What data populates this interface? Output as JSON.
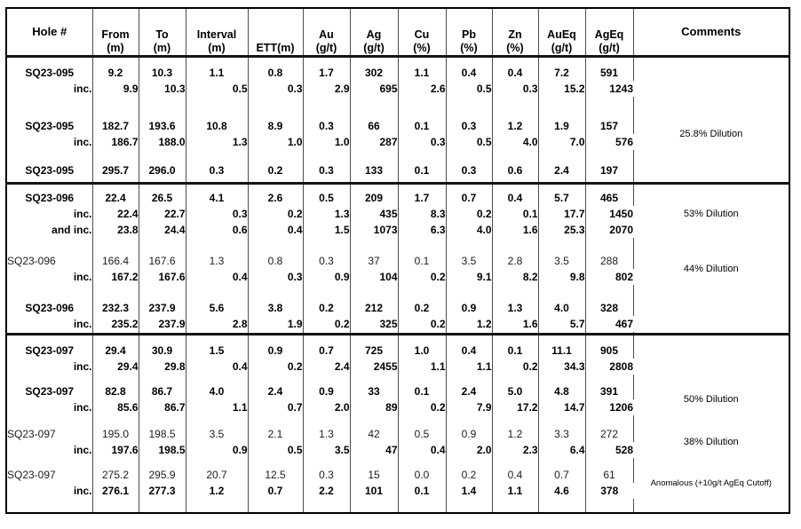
{
  "colors": {
    "background": "#ffffff",
    "text": "#000000",
    "border": "#000000",
    "grid_line": "#4d4d4d"
  },
  "table": {
    "headers": [
      {
        "id": "hole",
        "lines": [
          "Hole #"
        ],
        "vcenter": true
      },
      {
        "id": "from",
        "lines": [
          "From",
          "(m)"
        ],
        "vcenter": false
      },
      {
        "id": "to",
        "lines": [
          "To",
          "(m)"
        ],
        "vcenter": false
      },
      {
        "id": "interval",
        "lines": [
          "Interval",
          "(m)"
        ],
        "vcenter": false
      },
      {
        "id": "ett",
        "lines": [
          "ETT(m)"
        ],
        "vcenter": false
      },
      {
        "id": "au",
        "lines": [
          "Au",
          "(g/t)"
        ],
        "vcenter": false
      },
      {
        "id": "ag",
        "lines": [
          "Ag",
          "(g/t)"
        ],
        "vcenter": false
      },
      {
        "id": "cu",
        "lines": [
          "Cu",
          "(%)"
        ],
        "vcenter": false
      },
      {
        "id": "pb",
        "lines": [
          "Pb",
          "(%)"
        ],
        "vcenter": false
      },
      {
        "id": "zn",
        "lines": [
          "Zn",
          "(%)"
        ],
        "vcenter": false
      },
      {
        "id": "aueq",
        "lines": [
          "AuEq",
          "(g/t)"
        ],
        "vcenter": false
      },
      {
        "id": "ageq",
        "lines": [
          "AgEq",
          "(g/t)"
        ],
        "vcenter": false
      },
      {
        "id": "comments",
        "lines": [
          "Comments"
        ],
        "vcenter": true
      }
    ],
    "sections": [
      {
        "groups": [
          {
            "comment": "",
            "rows": [
              {
                "hole": "SQ23-095",
                "hole_align": "center",
                "bold": true,
                "val_align": "center",
                "values": [
                  "9.2",
                  "10.3",
                  "1.1",
                  "0.8",
                  "1.7",
                  "302",
                  "1.1",
                  "0.4",
                  "0.4",
                  "7.2",
                  "591"
                ]
              },
              {
                "hole": "inc.",
                "hole_align": "right",
                "bold": true,
                "val_align": "right",
                "values": [
                  "9.9",
                  "10.3",
                  "0.5",
                  "0.3",
                  "2.9",
                  "695",
                  "2.6",
                  "0.5",
                  "0.3",
                  "15.2",
                  "1243"
                ]
              }
            ]
          },
          {
            "comment": "25.8% Dilution",
            "rows": [
              {
                "hole": "SQ23-095",
                "hole_align": "center",
                "bold": true,
                "val_align": "center",
                "values": [
                  "182.7",
                  "193.6",
                  "10.8",
                  "8.9",
                  "0.3",
                  "66",
                  "0.1",
                  "0.3",
                  "1.2",
                  "1.9",
                  "157"
                ]
              },
              {
                "hole": "inc.",
                "hole_align": "right",
                "bold": true,
                "val_align": "right",
                "values": [
                  "186.7",
                  "188.0",
                  "1.3",
                  "1.0",
                  "1.0",
                  "287",
                  "0.3",
                  "0.5",
                  "4.0",
                  "7.0",
                  "576"
                ]
              }
            ]
          },
          {
            "comment": "",
            "rows": [
              {
                "hole": "SQ23-095",
                "hole_align": "center",
                "bold": true,
                "val_align": "center",
                "values": [
                  "295.7",
                  "296.0",
                  "0.3",
                  "0.2",
                  "0.3",
                  "133",
                  "0.1",
                  "0.3",
                  "0.6",
                  "2.4",
                  "197"
                ]
              }
            ]
          }
        ]
      },
      {
        "groups": [
          {
            "comment": "53% Dilution",
            "rows": [
              {
                "hole": "SQ23-096",
                "hole_align": "center",
                "bold": true,
                "val_align": "center",
                "values": [
                  "22.4",
                  "26.5",
                  "4.1",
                  "2.6",
                  "0.5",
                  "209",
                  "1.7",
                  "0.7",
                  "0.4",
                  "5.7",
                  "465"
                ]
              },
              {
                "hole": "inc.",
                "hole_align": "right",
                "bold": true,
                "val_align": "right",
                "values": [
                  "22.4",
                  "22.7",
                  "0.3",
                  "0.2",
                  "1.3",
                  "435",
                  "8.3",
                  "0.2",
                  "0.1",
                  "17.7",
                  "1450"
                ]
              },
              {
                "hole": "and inc.",
                "hole_align": "right",
                "bold": true,
                "val_align": "right",
                "values": [
                  "23.8",
                  "24.4",
                  "0.6",
                  "0.4",
                  "1.5",
                  "1073",
                  "6.3",
                  "4.0",
                  "1.6",
                  "25.3",
                  "2070"
                ]
              }
            ]
          },
          {
            "comment": "44% Dilution",
            "rows": [
              {
                "hole": "SQ23-096",
                "hole_align": "left",
                "bold": false,
                "val_align": "center",
                "values": [
                  "166.4",
                  "167.6",
                  "1.3",
                  "0.8",
                  "0.3",
                  "37",
                  "0.1",
                  "3.5",
                  "2.8",
                  "3.5",
                  "288"
                ]
              },
              {
                "hole": "inc.",
                "hole_align": "right",
                "bold": true,
                "val_align": "right",
                "values": [
                  "167.2",
                  "167.6",
                  "0.4",
                  "0.3",
                  "0.9",
                  "104",
                  "0.2",
                  "9.1",
                  "8.2",
                  "9.8",
                  "802"
                ]
              }
            ]
          },
          {
            "comment": "",
            "rows": [
              {
                "hole": "SQ23-096",
                "hole_align": "center",
                "bold": true,
                "val_align": "center",
                "values": [
                  "232.3",
                  "237.9",
                  "5.6",
                  "3.8",
                  "0.2",
                  "212",
                  "0.2",
                  "0.9",
                  "1.3",
                  "4.0",
                  "328"
                ]
              },
              {
                "hole": "inc.",
                "hole_align": "right",
                "bold": true,
                "val_align": "right",
                "values": [
                  "235.2",
                  "237.9",
                  "2.8",
                  "1.9",
                  "0.2",
                  "325",
                  "0.2",
                  "1.2",
                  "1.6",
                  "5.7",
                  "467"
                ]
              }
            ]
          }
        ]
      },
      {
        "groups": [
          {
            "comment": "",
            "rows": [
              {
                "hole": "SQ23-097",
                "hole_align": "center",
                "bold": true,
                "val_align": "center",
                "values": [
                  "29.4",
                  "30.9",
                  "1.5",
                  "0.9",
                  "0.7",
                  "725",
                  "1.0",
                  "0.4",
                  "0.1",
                  "11.1",
                  "905"
                ]
              },
              {
                "hole": "inc.",
                "hole_align": "right",
                "bold": true,
                "val_align": "right",
                "values": [
                  "29.4",
                  "29.8",
                  "0.4",
                  "0.2",
                  "2.4",
                  "2455",
                  "1.1",
                  "1.1",
                  "0.2",
                  "34.3",
                  "2808"
                ]
              }
            ]
          },
          {
            "comment": "50% Dilution",
            "rows": [
              {
                "hole": "SQ23-097",
                "hole_align": "center",
                "bold": true,
                "val_align": "center",
                "values": [
                  "82.8",
                  "86.7",
                  "4.0",
                  "2.4",
                  "0.9",
                  "33",
                  "0.1",
                  "2.4",
                  "5.0",
                  "4.8",
                  "391"
                ]
              },
              {
                "hole": "inc.",
                "hole_align": "right",
                "bold": true,
                "val_align": "right",
                "values": [
                  "85.6",
                  "86.7",
                  "1.1",
                  "0.7",
                  "2.0",
                  "89",
                  "0.2",
                  "7.9",
                  "17.2",
                  "14.7",
                  "1206"
                ]
              }
            ]
          },
          {
            "comment": "38% Dilution",
            "rows": [
              {
                "hole": "SQ23-097",
                "hole_align": "left",
                "bold": false,
                "val_align": "center",
                "values": [
                  "195.0",
                  "198.5",
                  "3.5",
                  "2.1",
                  "1.3",
                  "42",
                  "0.5",
                  "0.9",
                  "1.2",
                  "3.3",
                  "272"
                ]
              },
              {
                "hole": "inc.",
                "hole_align": "right",
                "bold": true,
                "val_align": "right",
                "values": [
                  "197.6",
                  "198.5",
                  "0.9",
                  "0.5",
                  "3.5",
                  "47",
                  "0.4",
                  "2.0",
                  "2.3",
                  "6.4",
                  "528"
                ]
              }
            ]
          },
          {
            "comment": "Anomalous (+10g/t AgEq Cutoff)",
            "comment_small": true,
            "rows": [
              {
                "hole": "SQ23-097",
                "hole_align": "left",
                "bold": false,
                "val_align": "center",
                "values": [
                  "275.2",
                  "295.9",
                  "20.7",
                  "12.5",
                  "0.3",
                  "15",
                  "0.0",
                  "0.2",
                  "0.4",
                  "0.7",
                  "61"
                ]
              },
              {
                "hole": "inc.",
                "hole_align": "right",
                "bold": true,
                "val_align": "center",
                "values": [
                  "276.1",
                  "277.3",
                  "1.2",
                  "0.7",
                  "2.2",
                  "101",
                  "0.1",
                  "1.4",
                  "1.1",
                  "4.6",
                  "378"
                ]
              }
            ]
          }
        ]
      }
    ]
  }
}
